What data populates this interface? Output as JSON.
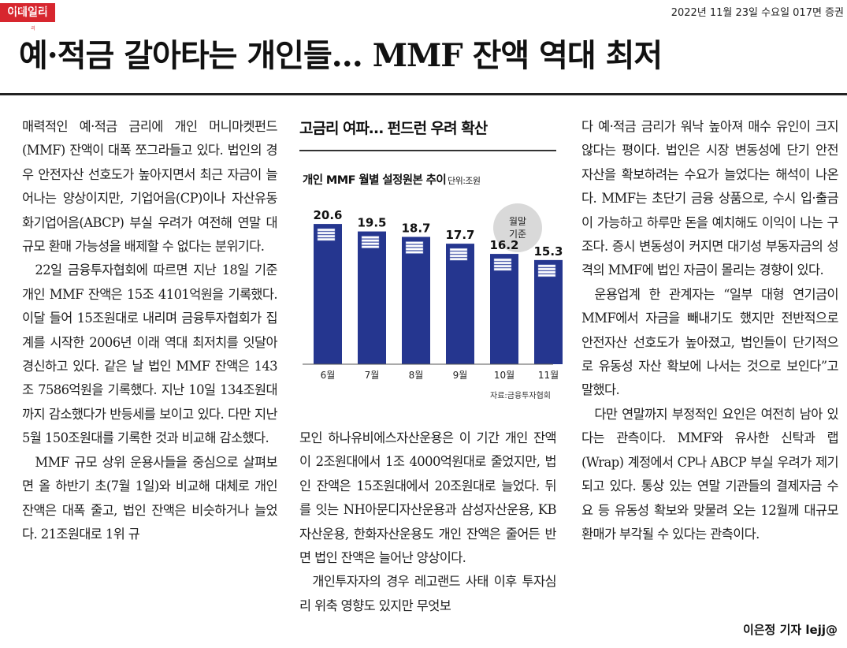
{
  "header": {
    "logo": "이데일리",
    "logo_small": "2022.11.23 이데일리",
    "dateline": "2022년 11월 23일 수요일 017면 증권",
    "headline": "예·적금 갈아타는 개인들… MMF 잔액 역대 최저"
  },
  "article": {
    "col1": [
      "매력적인 예·적금 금리에 개인 머니마켓펀드(MMF) 잔액이 대폭 쪼그라들고 있다. 법인의 경우 안전자산 선호도가 높아지면서 최근 자금이 늘어나는 양상이지만, 기업어음(CP)이나 자산유동화기업어음(ABCP) 부실 우려가 여전해 연말 대규모 환매 가능성을 배제할 수 없다는 분위기다.",
      "22일 금융투자협회에 따르면 지난 18일 기준 개인 MMF 잔액은 15조 4101억원을 기록했다. 이달 들어 15조원대로 내리며 금융투자협회가 집계를 시작한 2006년 이래 역대 최저치를 잇달아 경신하고 있다. 같은 날 법인 MMF 잔액은 143조 7586억원을 기록했다. 지난 10일 134조원대까지 감소했다가 반등세를 보이고 있다. 다만 지난 5월 150조원대를 기록한 것과 비교해 감소했다.",
      "MMF 규모 상위 운용사들을 중심으로 살펴보면 올 하반기 초(7월 1일)와 비교해 대체로 개인 잔액은 대폭 줄고, 법인 잔액은 비슷하거나 늘었다. 21조원대로 1위 규"
    ],
    "col2": [
      "모인 하나유비에스자산운용은 이 기간 개인 잔액이 2조원대에서 1조 4000억원대로 줄었지만, 법인 잔액은 15조원대에서 20조원대로 늘었다. 뒤를 잇는 NH아문디자산운용과 삼성자산운용, KB자산운용, 한화자산운용도 개인 잔액은 줄어든 반면 법인 잔액은 늘어난 양상이다.",
      "개인투자자의 경우 레고랜드 사태 이후 투자심리 위축 영향도 있지만 무엇보"
    ],
    "col3": [
      "다 예·적금 금리가 워낙 높아져 매수 유인이 크지 않다는 평이다. 법인은 시장 변동성에 단기 안전 자산을 확보하려는 수요가 늘었다는 해석이 나온다. MMF는 초단기 금융 상품으로, 수시 입·출금이 가능하고 하루만 돈을 예치해도 이익이 나는 구조다. 증시 변동성이 커지면 대기성 부동자금의 성격의 MMF에 법인 자금이 몰리는 경향이 있다.",
      "운용업계 한 관계자는 “일부 대형 연기금이 MMF에서 자금을 빼내기도 했지만 전반적으로 안전자산 선호도가 높아졌고, 법인들이 단기적으로 유동성 자산 확보에 나서는 것으로 보인다”고 말했다.",
      "다만 연말까지 부정적인 요인은 여전히 남아 있다는 관측이다. MMF와 유사한 신탁과 랩(Wrap) 계정에서 CP나 ABCP 부실 우려가 제기되고 있다. 통상 있는 연말 기관들의 결제자금 수요 등 유동성 확보와 맞물려 오는 12월께 대규모 환매가 부각될 수 있다는 관측이다."
    ],
    "byline": "이은정 기자 lejj@"
  },
  "chart": {
    "kicker": "고금리 여파… 펀드런 우려 확산",
    "title": "개인 MMF 월별 설정원본 추이",
    "unit": "단위:조원",
    "basis_note": "월말 기준",
    "source": "자료:금융투자협회",
    "bar_color": "#25368f",
    "chart_data": {
      "type": "bar",
      "title": "개인 MMF 월별 설정원본 추이",
      "ylabel": "단위:조원",
      "categories": [
        "6월",
        "7월",
        "8월",
        "9월",
        "10월",
        "11월"
      ],
      "values": [
        20.6,
        19.5,
        18.7,
        17.7,
        16.2,
        15.3
      ],
      "value_labels": [
        "20.6",
        "19.5",
        "18.7",
        "17.7",
        "16.2",
        "15.3"
      ],
      "ylim": [
        0,
        22
      ],
      "grid": false
    }
  }
}
